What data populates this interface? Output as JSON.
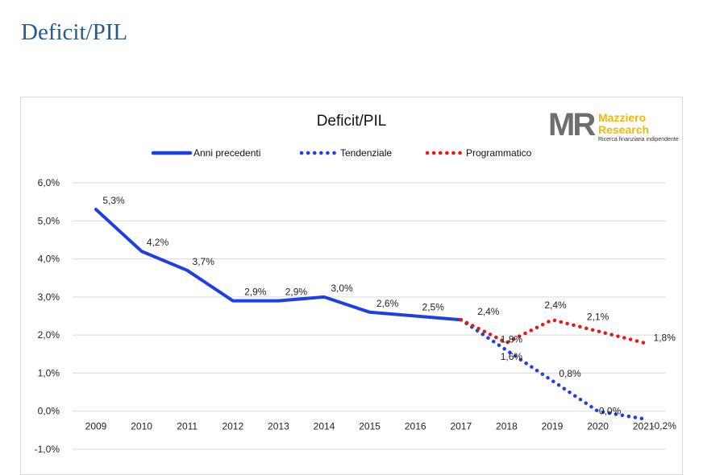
{
  "page": {
    "title": "Deficit/PIL"
  },
  "logo": {
    "mark": "MR",
    "name_line1": "Mazziero",
    "name_line2": "Research",
    "tagline": "Ricerca finanziaria indipendente"
  },
  "colors": {
    "previous": "#1f3fe6",
    "tendenziale": "#1f3fe6",
    "programmatico": "#e01b1b",
    "title": "#2a5a8c"
  },
  "chart_data": {
    "type": "line",
    "title": "Deficit/PIL",
    "xlabel": "",
    "ylabel": "",
    "ylim": [
      -1.0,
      6.0
    ],
    "yticks": [
      "6,0%",
      "5,0%",
      "4,0%",
      "3,0%",
      "2,0%",
      "1,0%",
      "0,0%",
      "-1,0%"
    ],
    "yticks_values": [
      6,
      5,
      4,
      3,
      2,
      1,
      0,
      -1
    ],
    "categories": [
      "2009",
      "2010",
      "2011",
      "2012",
      "2013",
      "2014",
      "2015",
      "2016",
      "2017",
      "2018",
      "2019",
      "2020",
      "2021"
    ],
    "grid": true,
    "legend": "top",
    "series": [
      {
        "name": "Anni precedenti",
        "style": "solid",
        "color": "#1f3fe6",
        "x": [
          "2009",
          "2010",
          "2011",
          "2012",
          "2013",
          "2014",
          "2015",
          "2016",
          "2017"
        ],
        "values": [
          5.3,
          4.2,
          3.7,
          2.9,
          2.9,
          3.0,
          2.6,
          2.5,
          2.4
        ],
        "labels": [
          "5,3%",
          "4,2%",
          "3,7%",
          "2,9%",
          "2,9%",
          "3,0%",
          "2,6%",
          "2,5%",
          ""
        ]
      },
      {
        "name": "Tendenziale",
        "style": "dotted",
        "color": "#1f3fe6",
        "x": [
          "2017",
          "2018",
          "2019",
          "2020",
          "2021"
        ],
        "values": [
          2.4,
          1.6,
          0.8,
          0.0,
          -0.2
        ],
        "labels": [
          "",
          "1,6%",
          "0,8%",
          "0,0%",
          "-0,2%"
        ]
      },
      {
        "name": "Programmatico",
        "style": "dotted",
        "color": "#e01b1b",
        "x": [
          "2017",
          "2018",
          "2019",
          "2020",
          "2021"
        ],
        "values": [
          2.4,
          1.8,
          2.4,
          2.1,
          1.8
        ],
        "labels": [
          "2,4%",
          "1,8%",
          "2,4%",
          "2,1%",
          "1,8%"
        ]
      }
    ]
  }
}
